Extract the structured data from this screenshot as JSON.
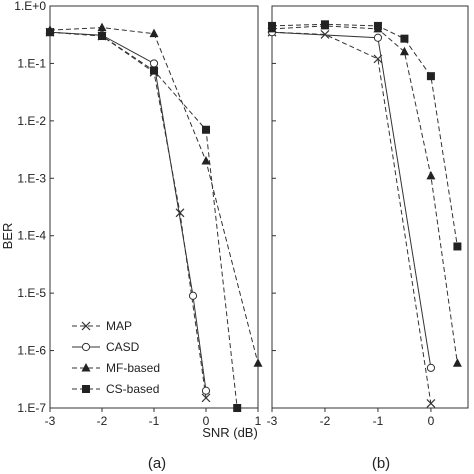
{
  "figure": {
    "ylabel": "BER",
    "xlabel": "SNR (dB)"
  },
  "chart_data": [
    {
      "type": "line",
      "panel_label": "(a)",
      "xlim": [
        -3,
        1
      ],
      "ylim": [
        1e-07,
        1
      ],
      "y_scale": "log",
      "x_ticks": [
        -3,
        -2,
        -1,
        0,
        1
      ],
      "x_tick_labels": [
        "-3",
        "-2",
        "-1",
        "0",
        "1"
      ],
      "y_tick_labels": [
        "1.E+0",
        "1.E-1",
        "1.E-2",
        "1.E-3",
        "1.E-4",
        "1.E-5",
        "1.E-6",
        "1.E-7"
      ],
      "legend": {
        "placement": "bottom-left"
      },
      "series": [
        {
          "name": "MAP",
          "marker": "x",
          "dash": "dashed",
          "x": [
            -3,
            -2,
            -1,
            -0.5,
            0
          ],
          "y": [
            0.35,
            0.3,
            0.07,
            0.00025,
            1.5e-07
          ]
        },
        {
          "name": "CASD",
          "marker": "open-circle",
          "dash": "solid",
          "x": [
            -3,
            -2,
            -1,
            -0.25,
            0
          ],
          "y": [
            0.35,
            0.31,
            0.1,
            9e-06,
            2e-07
          ]
        },
        {
          "name": "MF-based",
          "marker": "triangle",
          "dash": "dashed",
          "x": [
            -3,
            -2,
            -1,
            0,
            1
          ],
          "y": [
            0.38,
            0.42,
            0.33,
            0.002,
            6e-07
          ]
        },
        {
          "name": "CS-based",
          "marker": "square",
          "dash": "dashed",
          "x": [
            -3,
            -2,
            -1,
            0,
            0.6
          ],
          "y": [
            0.35,
            0.3,
            0.075,
            0.007,
            1e-07
          ]
        }
      ]
    },
    {
      "type": "line",
      "panel_label": "(b)",
      "xlim": [
        -3,
        0.7
      ],
      "ylim": [
        1e-07,
        1
      ],
      "y_scale": "log",
      "x_ticks": [
        -3,
        -2,
        -1,
        0
      ],
      "x_tick_labels": [
        "-3",
        "-2",
        "-1",
        "0"
      ],
      "series": [
        {
          "name": "MAP",
          "marker": "x",
          "dash": "dashed",
          "x": [
            -3,
            -2,
            -1,
            0
          ],
          "y": [
            0.35,
            0.32,
            0.12,
            1.2e-07
          ]
        },
        {
          "name": "CASD",
          "marker": "open-circle",
          "dash": "solid",
          "x": [
            -3,
            -1,
            0
          ],
          "y": [
            0.35,
            0.28,
            5e-07
          ]
        },
        {
          "name": "MF-based",
          "marker": "triangle",
          "dash": "dashed",
          "x": [
            -3,
            -2,
            -1,
            -0.5,
            0,
            0.5
          ],
          "y": [
            0.4,
            0.45,
            0.4,
            0.16,
            0.0011,
            6e-07
          ]
        },
        {
          "name": "CS-based",
          "marker": "square",
          "dash": "dashed",
          "x": [
            -3,
            -2,
            -1,
            -0.5,
            0,
            0.5
          ],
          "y": [
            0.45,
            0.48,
            0.45,
            0.27,
            0.06,
            6.5e-05
          ]
        }
      ]
    }
  ]
}
